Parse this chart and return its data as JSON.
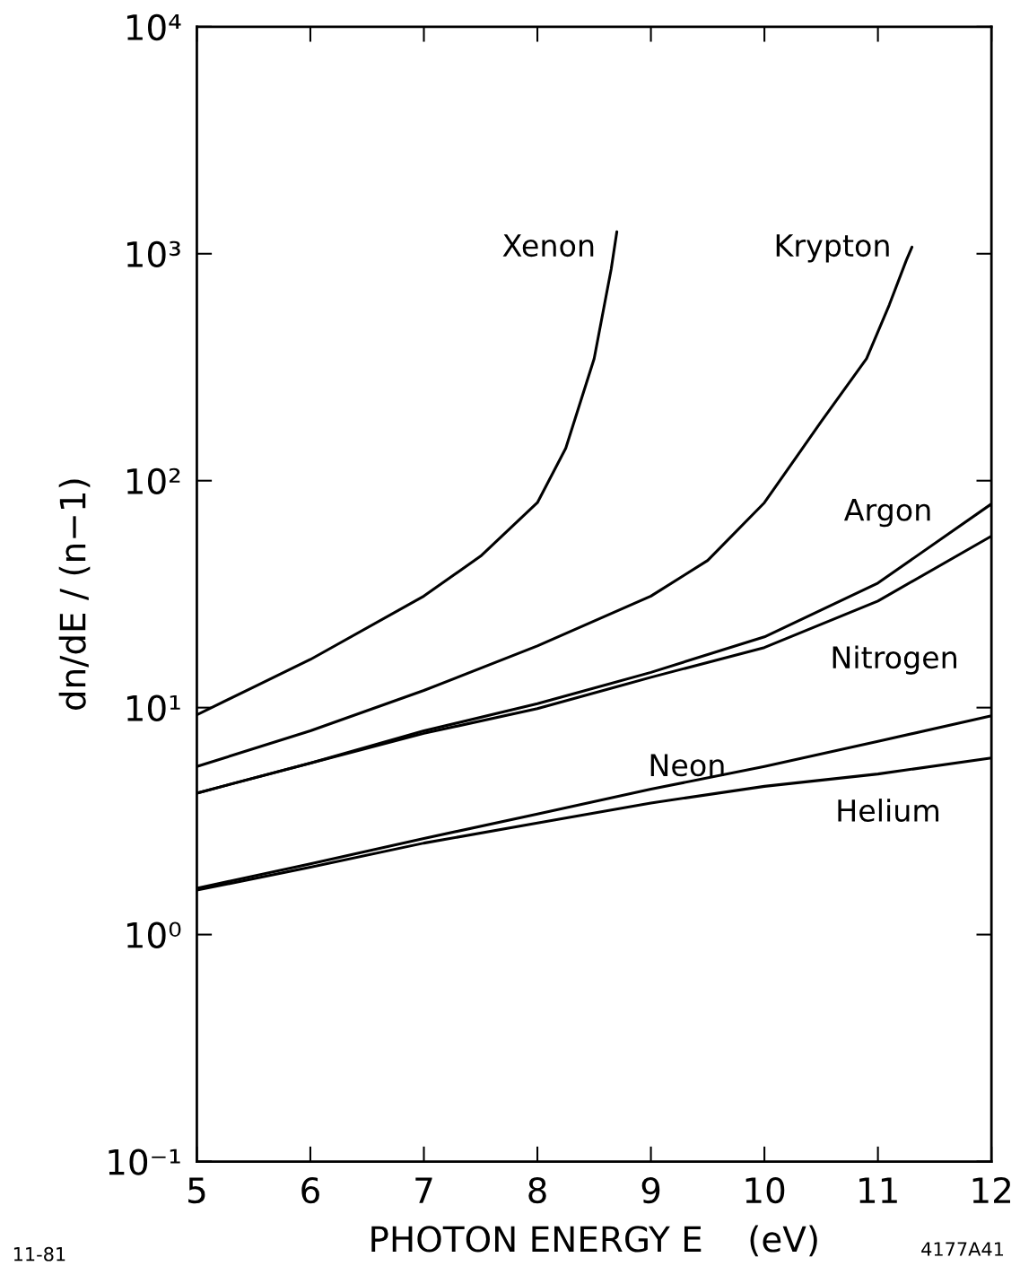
{
  "chart_data": {
    "type": "line",
    "xlabel": "PHOTON ENERGY E    (eV)",
    "ylabel": "dn/dE / (n−1)",
    "log": true,
    "grid": false,
    "legend": false,
    "marker": "none",
    "line_style": "solid",
    "xlim": [
      5,
      12
    ],
    "xticks": [
      5,
      6,
      7,
      8,
      9,
      10,
      11,
      12
    ],
    "ylim": [
      0.1,
      10000
    ],
    "yticks": [
      {
        "value": 0.1,
        "label": "10⁻¹"
      },
      {
        "value": 1,
        "label": "10⁰"
      },
      {
        "value": 10,
        "label": "10¹"
      },
      {
        "value": 100,
        "label": "10²"
      },
      {
        "value": 1000,
        "label": "10³"
      },
      {
        "value": 10000,
        "label": "10⁴"
      }
    ],
    "series": [
      {
        "name": "Xenon",
        "color": "#000000",
        "x": [
          5,
          6,
          7,
          7.5,
          8,
          8.25,
          8.5,
          8.65,
          8.7
        ],
        "values": [
          9.3,
          16.3,
          31,
          46.5,
          80,
          139,
          345,
          855,
          1250
        ]
      },
      {
        "name": "Krypton",
        "color": "#000000",
        "x": [
          5,
          6,
          7,
          8,
          9,
          9.5,
          10,
          10.5,
          10.9,
          11.1,
          11.25,
          11.3
        ],
        "values": [
          5.5,
          7.9,
          11.9,
          18.7,
          31,
          44.5,
          80,
          182,
          345,
          595,
          935,
          1070
        ]
      },
      {
        "name": "Argon",
        "color": "#000000",
        "x": [
          5,
          6,
          7,
          8,
          9,
          10,
          11,
          12
        ],
        "values": [
          4.2,
          5.7,
          7.9,
          10.4,
          14.3,
          20.5,
          35.4,
          79
        ]
      },
      {
        "name": "Nitrogen",
        "color": "#000000",
        "x": [
          5,
          6,
          7,
          8,
          9,
          10,
          11,
          12
        ],
        "values": [
          4.2,
          5.7,
          7.7,
          9.9,
          13.6,
          18.4,
          29.5,
          57
        ]
      },
      {
        "name": "Neon",
        "color": "#000000",
        "x": [
          5,
          6,
          7,
          8,
          9,
          10,
          11,
          12
        ],
        "values": [
          1.6,
          2.05,
          2.65,
          3.4,
          4.37,
          5.5,
          7.1,
          9.2
        ]
      },
      {
        "name": "Helium",
        "color": "#000000",
        "x": [
          5,
          6,
          7,
          8,
          9,
          10,
          11,
          12
        ],
        "values": [
          1.57,
          1.98,
          2.53,
          3.1,
          3.8,
          4.5,
          5.1,
          6.0
        ]
      }
    ],
    "annotations": [
      "11-81",
      "4177A41"
    ]
  }
}
